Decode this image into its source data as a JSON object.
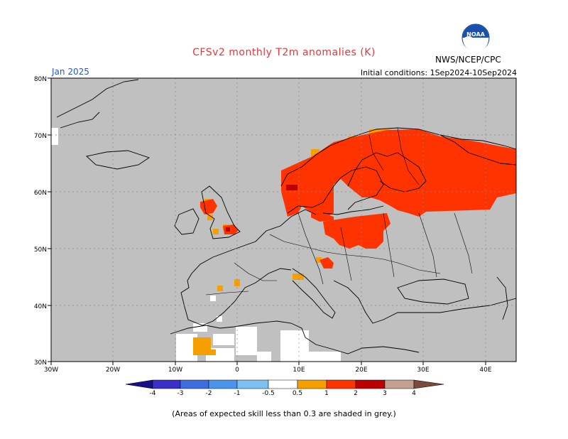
{
  "header": {
    "title": "CFSv2 monthly T2m anomalies (K)",
    "month": "Jan 2025",
    "initial_conditions": "Initial conditions: 1Sep2024-10Sep2024",
    "agency": "NWS/NCEP/CPC",
    "logo_text": "NOAA"
  },
  "axes": {
    "y_ticks": [
      "80N",
      "70N",
      "60N",
      "50N",
      "40N",
      "30N"
    ],
    "x_ticks": [
      "30W",
      "20W",
      "10W",
      "0",
      "10E",
      "20E",
      "30E",
      "40E"
    ]
  },
  "colorbar": {
    "labels": [
      "-4",
      "-3",
      "-2",
      "-1",
      "-0.5",
      "0.5",
      "1",
      "2",
      "3",
      "4"
    ],
    "colors": [
      "#1a0f8a",
      "#3a2fc8",
      "#3d6ee0",
      "#4a95ea",
      "#7cc0f4",
      "#ffffff",
      "#f5a000",
      "#ff3300",
      "#bb0000",
      "#880000",
      "#c4a090",
      "#7a4a3a"
    ]
  },
  "footnote": "(Areas of expected skill less than 0.3 are shaded in grey.)",
  "colors": {
    "ocean_grey": "#c0c0c0",
    "land_grey": "#c0c0c0",
    "anomaly_1_2": "#ff3300",
    "anomaly_05_1": "#f5a000",
    "anomaly_2_3": "#bb0000"
  }
}
